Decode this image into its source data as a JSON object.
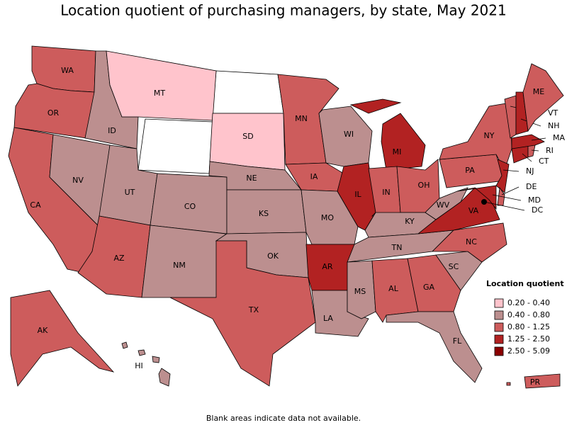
{
  "title": "Location quotient of purchasing managers, by state, May 2021",
  "footnote": "Blank areas indicate data not available.",
  "legend": {
    "title": "Location quotient",
    "bins": [
      {
        "label": "0.20 - 0.40",
        "color": "#ffc4cc"
      },
      {
        "label": "0.40 - 0.80",
        "color": "#bc8f8f"
      },
      {
        "label": "0.80 - 1.25",
        "color": "#cd5c5c"
      },
      {
        "label": "1.25 - 2.50",
        "color": "#b22222"
      },
      {
        "label": "2.50 - 5.09",
        "color": "#8b0000"
      }
    ]
  },
  "states": [
    {
      "abbr": "WA",
      "bin": 2
    },
    {
      "abbr": "OR",
      "bin": 2
    },
    {
      "abbr": "CA",
      "bin": 2
    },
    {
      "abbr": "NV",
      "bin": 1
    },
    {
      "abbr": "ID",
      "bin": 1
    },
    {
      "abbr": "MT",
      "bin": 0
    },
    {
      "abbr": "UT",
      "bin": 1
    },
    {
      "abbr": "AZ",
      "bin": 2
    },
    {
      "abbr": "CO",
      "bin": 1
    },
    {
      "abbr": "NM",
      "bin": 1
    },
    {
      "abbr": "SD",
      "bin": 0
    },
    {
      "abbr": "NE",
      "bin": 1
    },
    {
      "abbr": "KS",
      "bin": 1
    },
    {
      "abbr": "OK",
      "bin": 1
    },
    {
      "abbr": "TX",
      "bin": 2
    },
    {
      "abbr": "MN",
      "bin": 2
    },
    {
      "abbr": "IA",
      "bin": 2
    },
    {
      "abbr": "MO",
      "bin": 1
    },
    {
      "abbr": "AR",
      "bin": 3
    },
    {
      "abbr": "LA",
      "bin": 1
    },
    {
      "abbr": "WI",
      "bin": 1
    },
    {
      "abbr": "IL",
      "bin": 3
    },
    {
      "abbr": "MI",
      "bin": 3
    },
    {
      "abbr": "IN",
      "bin": 2
    },
    {
      "abbr": "OH",
      "bin": 2
    },
    {
      "abbr": "KY",
      "bin": 1
    },
    {
      "abbr": "TN",
      "bin": 1
    },
    {
      "abbr": "MS",
      "bin": 1
    },
    {
      "abbr": "AL",
      "bin": 2
    },
    {
      "abbr": "GA",
      "bin": 2
    },
    {
      "abbr": "FL",
      "bin": 1
    },
    {
      "abbr": "SC",
      "bin": 1
    },
    {
      "abbr": "NC",
      "bin": 2
    },
    {
      "abbr": "VA",
      "bin": 3
    },
    {
      "abbr": "WV",
      "bin": 1
    },
    {
      "abbr": "PA",
      "bin": 2
    },
    {
      "abbr": "NY",
      "bin": 2
    },
    {
      "abbr": "NJ",
      "bin": 3
    },
    {
      "abbr": "DE",
      "bin": 2
    },
    {
      "abbr": "MD",
      "bin": 3
    },
    {
      "abbr": "DC",
      "bin": 4
    },
    {
      "abbr": "CT",
      "bin": 3
    },
    {
      "abbr": "RI",
      "bin": 2
    },
    {
      "abbr": "MA",
      "bin": 3
    },
    {
      "abbr": "VT",
      "bin": 2
    },
    {
      "abbr": "NH",
      "bin": 3
    },
    {
      "abbr": "ME",
      "bin": 2
    },
    {
      "abbr": "AK",
      "bin": 2
    },
    {
      "abbr": "HI",
      "bin": 1
    },
    {
      "abbr": "PR",
      "bin": 2
    }
  ]
}
